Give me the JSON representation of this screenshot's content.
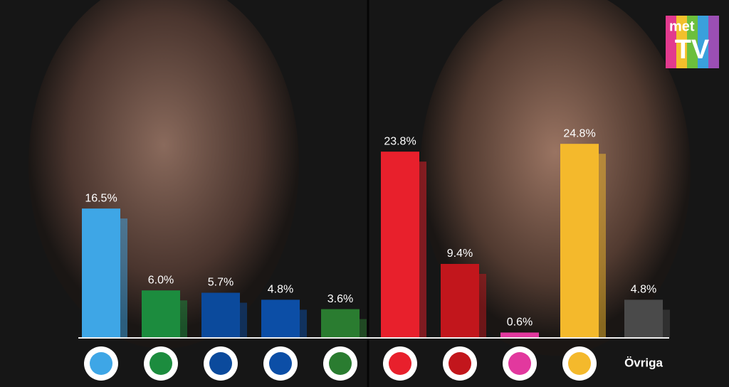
{
  "chart_data": {
    "type": "bar",
    "categories": [
      null,
      null,
      null,
      null,
      null,
      null,
      null,
      null,
      null,
      "Övriga"
    ],
    "values": [
      16.5,
      6.0,
      5.7,
      4.8,
      3.6,
      23.8,
      9.4,
      0.6,
      24.8,
      4.8
    ],
    "value_labels": [
      "16.5%",
      "6.0%",
      "5.7%",
      "4.8%",
      "3.6%",
      "23.8%",
      "9.4%",
      "0.6%",
      "24.8%",
      "4.8%"
    ],
    "colors": [
      "#3ea6e6",
      "#1c8c3e",
      "#0b4a9c",
      "#0c4ea6",
      "#2a7c30",
      "#e8202c",
      "#c2161c",
      "#e2389e",
      "#f4b92c",
      "#4a4a4a"
    ],
    "ylim": [
      0,
      25
    ]
  },
  "logo": {
    "top": "met",
    "bottom": "TV"
  }
}
